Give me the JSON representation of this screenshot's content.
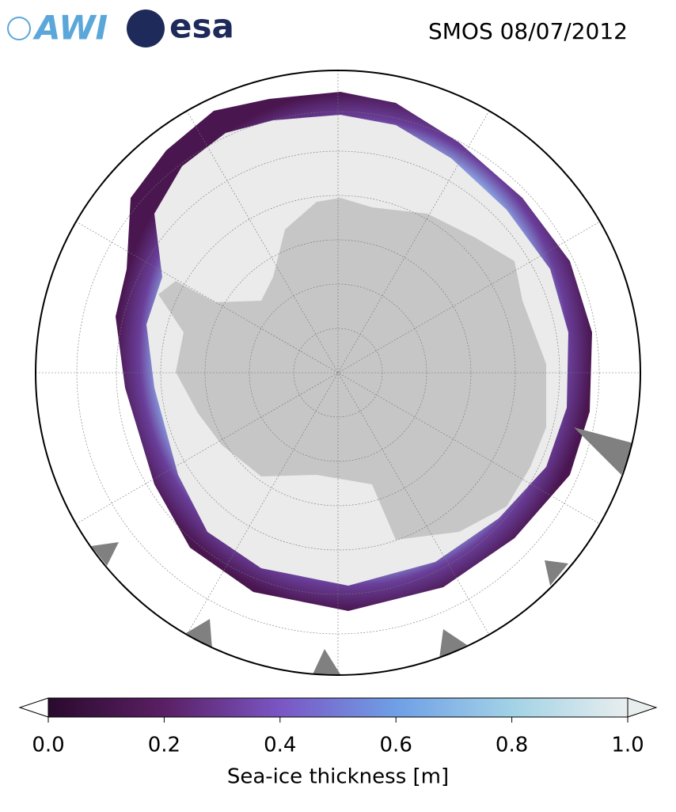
{
  "header": {
    "logos": [
      "AWI",
      "esa"
    ],
    "title": "SMOS 08/07/2012"
  },
  "colorbar": {
    "label": "Sea-ice thickness [m]",
    "lim": [
      0,
      1
    ],
    "ticks": [
      {
        "value": 0,
        "label": "0.0"
      },
      {
        "value": 0.2,
        "label": "0.2"
      },
      {
        "value": 0.4,
        "label": "0.4"
      },
      {
        "value": 0.6,
        "label": "0.6"
      },
      {
        "value": 0.8,
        "label": "0.8"
      },
      {
        "value": 1,
        "label": "1.0"
      }
    ],
    "colors": [
      "#2a0a2e",
      "#5a1f64",
      "#7a56c4",
      "#6f9fe6",
      "#a2d2e6",
      "#e8eeee"
    ]
  }
}
